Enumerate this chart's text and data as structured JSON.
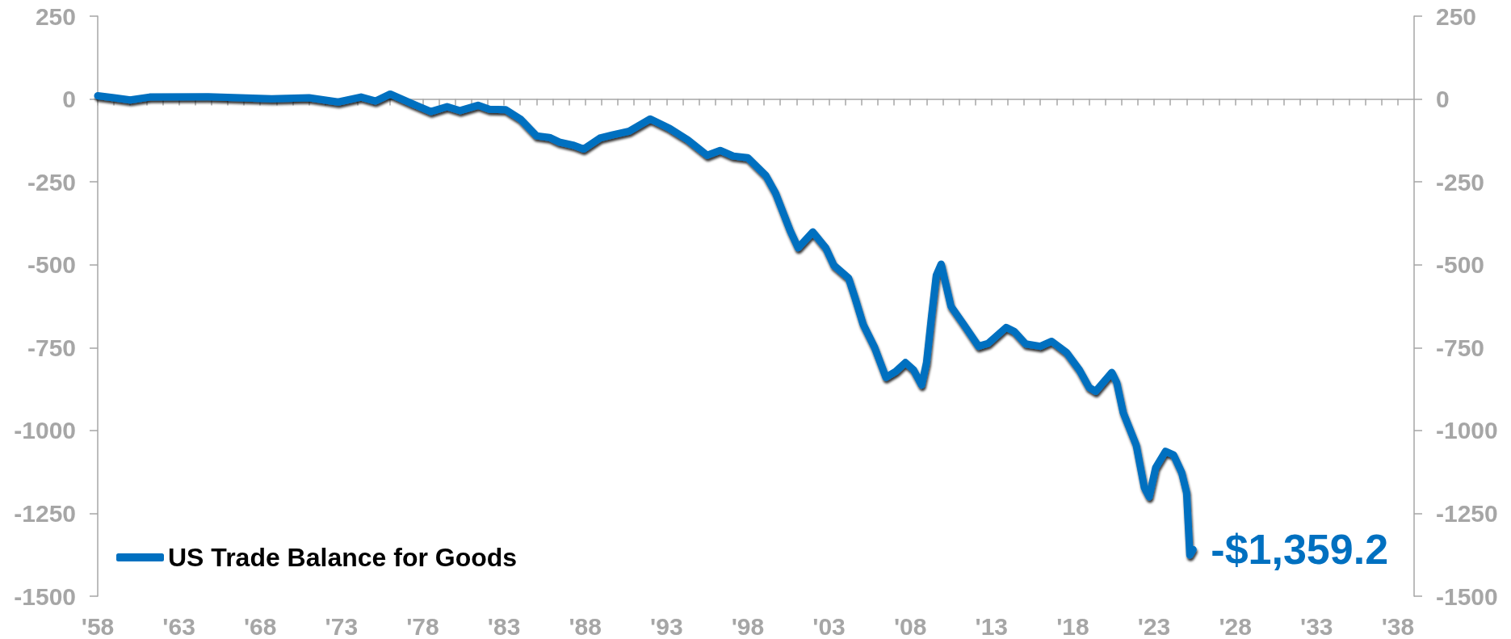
{
  "chart_data": {
    "type": "line",
    "x": [
      1958.0,
      1959.0,
      1960.0,
      1961.2,
      1964.8,
      1968.7,
      1971.0,
      1972.8,
      1974.2,
      1975.1,
      1976.0,
      1977.3,
      1978.5,
      1979.5,
      1980.3,
      1981.4,
      1982.1,
      1983.1,
      1984.0,
      1985.0,
      1985.8,
      1986.4,
      1987.3,
      1987.9,
      1988.9,
      1989.7,
      1990.7,
      1992.0,
      1993.2,
      1994.3,
      1995.5,
      1996.3,
      1997.1,
      1998.0,
      1999.1,
      1999.7,
      2000.6,
      2001.1,
      2002.0,
      2002.8,
      2003.3,
      2004.2,
      2004.6,
      2005.1,
      2005.8,
      2006.5,
      2007.1,
      2007.7,
      2008.2,
      2008.7,
      2009.0,
      2009.3,
      2009.6,
      2009.9,
      2010.5,
      2011.3,
      2012.2,
      2012.8,
      2013.9,
      2014.4,
      2015.1,
      2016.0,
      2016.7,
      2017.6,
      2018.4,
      2019.0,
      2019.4,
      2020.4,
      2020.7,
      2021.1,
      2021.9,
      2022.4,
      2022.7,
      2023.1,
      2023.7,
      2024.2,
      2024.7,
      2025.0,
      2025.2,
      2025.4
    ],
    "series": [
      {
        "name": "US Trade Balance for Goods",
        "color": "#0070c0",
        "values": [
          10,
          4,
          -3,
          6,
          7,
          1,
          4,
          -9,
          6,
          -6,
          15,
          -13,
          -38,
          -23,
          -35,
          -19,
          -31,
          -32,
          -60,
          -111,
          -116,
          -130,
          -140,
          -151,
          -118,
          -108,
          -97,
          -60,
          -89,
          -123,
          -170,
          -155,
          -172,
          -177,
          -230,
          -283,
          -396,
          -449,
          -401,
          -449,
          -502,
          -540,
          -600,
          -680,
          -749,
          -840,
          -822,
          -795,
          -817,
          -863,
          -795,
          -659,
          -532,
          -498,
          -625,
          -681,
          -746,
          -737,
          -689,
          -701,
          -739,
          -746,
          -731,
          -764,
          -817,
          -870,
          -882,
          -825,
          -855,
          -946,
          -1044,
          -1172,
          -1200,
          -1112,
          -1063,
          -1074,
          -1127,
          -1187,
          -1376,
          -1359.2
        ],
        "value_labels": [
          null,
          null,
          null,
          null,
          null,
          null,
          null,
          null,
          null,
          null,
          null,
          null,
          null,
          null,
          null,
          null,
          null,
          null,
          null,
          null,
          null,
          null,
          null,
          null,
          null,
          null,
          null,
          null,
          null,
          null,
          null,
          null,
          null,
          null,
          null,
          null,
          null,
          null,
          null,
          null,
          null,
          null,
          null,
          null,
          null,
          null,
          null,
          null,
          null,
          null,
          null,
          null,
          null,
          null,
          null,
          null,
          null,
          null,
          null,
          null,
          null,
          null,
          null,
          null,
          null,
          null,
          null,
          null,
          null,
          null,
          null,
          null,
          null,
          null,
          null,
          null,
          null,
          null,
          null,
          "-$1,359.2"
        ]
      }
    ],
    "xlim": [
      1958,
      2039
    ],
    "xticks": [
      {
        "value": 1958,
        "label": "'58"
      },
      {
        "value": 1959,
        "label": null
      },
      {
        "value": 1960,
        "label": null
      },
      {
        "value": 1961,
        "label": null
      },
      {
        "value": 1962,
        "label": null
      },
      {
        "value": 1963,
        "label": "'63"
      },
      {
        "value": 1964,
        "label": null
      },
      {
        "value": 1965,
        "label": null
      },
      {
        "value": 1966,
        "label": null
      },
      {
        "value": 1967,
        "label": null
      },
      {
        "value": 1968,
        "label": "'68"
      },
      {
        "value": 1969,
        "label": null
      },
      {
        "value": 1970,
        "label": null
      },
      {
        "value": 1971,
        "label": null
      },
      {
        "value": 1972,
        "label": null
      },
      {
        "value": 1973,
        "label": "'73"
      },
      {
        "value": 1974,
        "label": null
      },
      {
        "value": 1975,
        "label": null
      },
      {
        "value": 1976,
        "label": null
      },
      {
        "value": 1977,
        "label": null
      },
      {
        "value": 1978,
        "label": "'78"
      },
      {
        "value": 1979,
        "label": null
      },
      {
        "value": 1980,
        "label": null
      },
      {
        "value": 1981,
        "label": null
      },
      {
        "value": 1982,
        "label": null
      },
      {
        "value": 1983,
        "label": "'83"
      },
      {
        "value": 1984,
        "label": null
      },
      {
        "value": 1985,
        "label": null
      },
      {
        "value": 1986,
        "label": null
      },
      {
        "value": 1987,
        "label": null
      },
      {
        "value": 1988,
        "label": "'88"
      },
      {
        "value": 1989,
        "label": null
      },
      {
        "value": 1990,
        "label": null
      },
      {
        "value": 1991,
        "label": null
      },
      {
        "value": 1992,
        "label": null
      },
      {
        "value": 1993,
        "label": "'93"
      },
      {
        "value": 1994,
        "label": null
      },
      {
        "value": 1995,
        "label": null
      },
      {
        "value": 1996,
        "label": null
      },
      {
        "value": 1997,
        "label": null
      },
      {
        "value": 1998,
        "label": "'98"
      },
      {
        "value": 1999,
        "label": null
      },
      {
        "value": 2000,
        "label": null
      },
      {
        "value": 2001,
        "label": null
      },
      {
        "value": 2002,
        "label": null
      },
      {
        "value": 2003,
        "label": "'03"
      },
      {
        "value": 2004,
        "label": null
      },
      {
        "value": 2005,
        "label": null
      },
      {
        "value": 2006,
        "label": null
      },
      {
        "value": 2007,
        "label": null
      },
      {
        "value": 2008,
        "label": "'08"
      },
      {
        "value": 2009,
        "label": null
      },
      {
        "value": 2010,
        "label": null
      },
      {
        "value": 2011,
        "label": null
      },
      {
        "value": 2012,
        "label": null
      },
      {
        "value": 2013,
        "label": "'13"
      },
      {
        "value": 2014,
        "label": null
      },
      {
        "value": 2015,
        "label": null
      },
      {
        "value": 2016,
        "label": null
      },
      {
        "value": 2017,
        "label": null
      },
      {
        "value": 2018,
        "label": "'18"
      },
      {
        "value": 2019,
        "label": null
      },
      {
        "value": 2020,
        "label": null
      },
      {
        "value": 2021,
        "label": null
      },
      {
        "value": 2022,
        "label": null
      },
      {
        "value": 2023,
        "label": "'23"
      },
      {
        "value": 2024,
        "label": null
      },
      {
        "value": 2025,
        "label": null
      },
      {
        "value": 2026,
        "label": null
      },
      {
        "value": 2027,
        "label": null
      },
      {
        "value": 2028,
        "label": "'28"
      },
      {
        "value": 2029,
        "label": null
      },
      {
        "value": 2030,
        "label": null
      },
      {
        "value": 2031,
        "label": null
      },
      {
        "value": 2032,
        "label": null
      },
      {
        "value": 2033,
        "label": "'33"
      },
      {
        "value": 2034,
        "label": null
      },
      {
        "value": 2035,
        "label": null
      },
      {
        "value": 2036,
        "label": null
      },
      {
        "value": 2037,
        "label": null
      },
      {
        "value": 2038,
        "label": "'38"
      }
    ],
    "ylim": [
      -1500,
      250
    ],
    "yticks": [
      -1500,
      -1250,
      -1000,
      -750,
      -500,
      -250,
      0,
      250
    ],
    "y2lim": [
      -1500,
      250
    ],
    "y2ticks": [
      -1500,
      -1250,
      -1000,
      -750,
      -500,
      -250,
      0,
      250
    ],
    "legend": "bottom left"
  }
}
